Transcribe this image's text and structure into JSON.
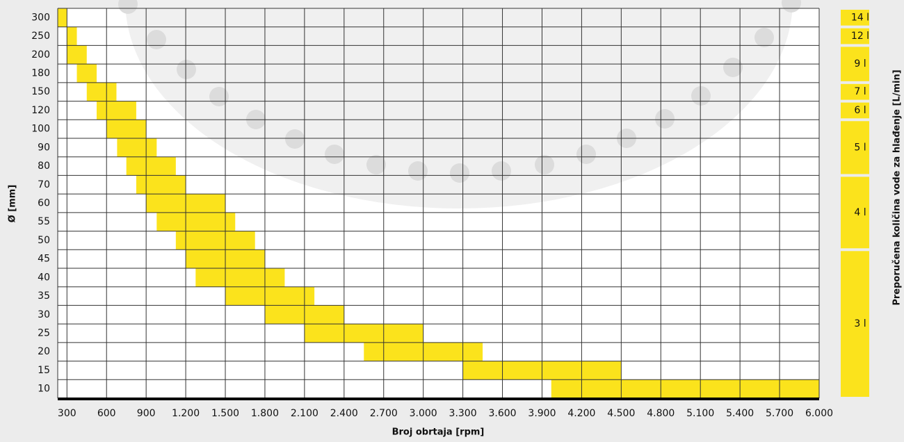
{
  "chart_data": {
    "type": "bar",
    "x_label": "Broj obrtaja [rpm]",
    "y_label": "Ø [mm]",
    "y2_label": "Preporučena količina vode za hlađenje [L/min]",
    "categories": [
      "300",
      "250",
      "200",
      "180",
      "150",
      "120",
      "100",
      "90",
      "80",
      "70",
      "60",
      "55",
      "50",
      "45",
      "40",
      "35",
      "30",
      "25",
      "20",
      "15",
      "10"
    ],
    "low": [
      230,
      300,
      300,
      375,
      450,
      525,
      600,
      680,
      750,
      825,
      900,
      980,
      1125,
      1200,
      1275,
      1500,
      1800,
      2100,
      2550,
      3300,
      3970
    ],
    "high": [
      300,
      375,
      450,
      525,
      675,
      825,
      900,
      980,
      1125,
      1200,
      1500,
      1575,
      1725,
      1800,
      1950,
      2175,
      2400,
      3000,
      3450,
      4500,
      6000
    ],
    "color": "#fbe31c",
    "xlim": [
      230,
      6000
    ],
    "xticks": [
      300,
      600,
      900,
      {
        "value": 1200,
        "label": "1.200"
      },
      {
        "value": 1500,
        "label": "1.500"
      },
      {
        "value": 1800,
        "label": "1.800"
      },
      {
        "value": 2100,
        "label": "2.100"
      },
      {
        "value": 2400,
        "label": "2.400"
      },
      {
        "value": 2700,
        "label": "2.700"
      },
      {
        "value": 3000,
        "label": "3.000"
      },
      {
        "value": 3300,
        "label": "3.300"
      },
      {
        "value": 3600,
        "label": "3.600"
      },
      {
        "value": 3900,
        "label": "3.900"
      },
      {
        "value": 4200,
        "label": "4.200"
      },
      {
        "value": 4500,
        "label": "4.500"
      },
      {
        "value": 4800,
        "label": "4.800"
      },
      {
        "value": 5100,
        "label": "5.100"
      },
      {
        "value": 5400,
        "label": "5.400"
      },
      {
        "value": 5700,
        "label": "5.700"
      },
      {
        "value": 6000,
        "label": "6.000"
      }
    ],
    "grid": true,
    "cooling": [
      {
        "label": "14 l",
        "from": 300,
        "to": 300
      },
      {
        "label": "12 l",
        "from": 250,
        "to": 250
      },
      {
        "label": "9 l",
        "from": 200,
        "to": 180
      },
      {
        "label": "7 l",
        "from": 150,
        "to": 150
      },
      {
        "label": "6 l",
        "from": 120,
        "to": 120
      },
      {
        "label": "5 l",
        "from": 100,
        "to": 80
      },
      {
        "label": "4 l",
        "from": 70,
        "to": 50
      },
      {
        "label": "3 l",
        "from": 45,
        "to": 10
      }
    ]
  }
}
